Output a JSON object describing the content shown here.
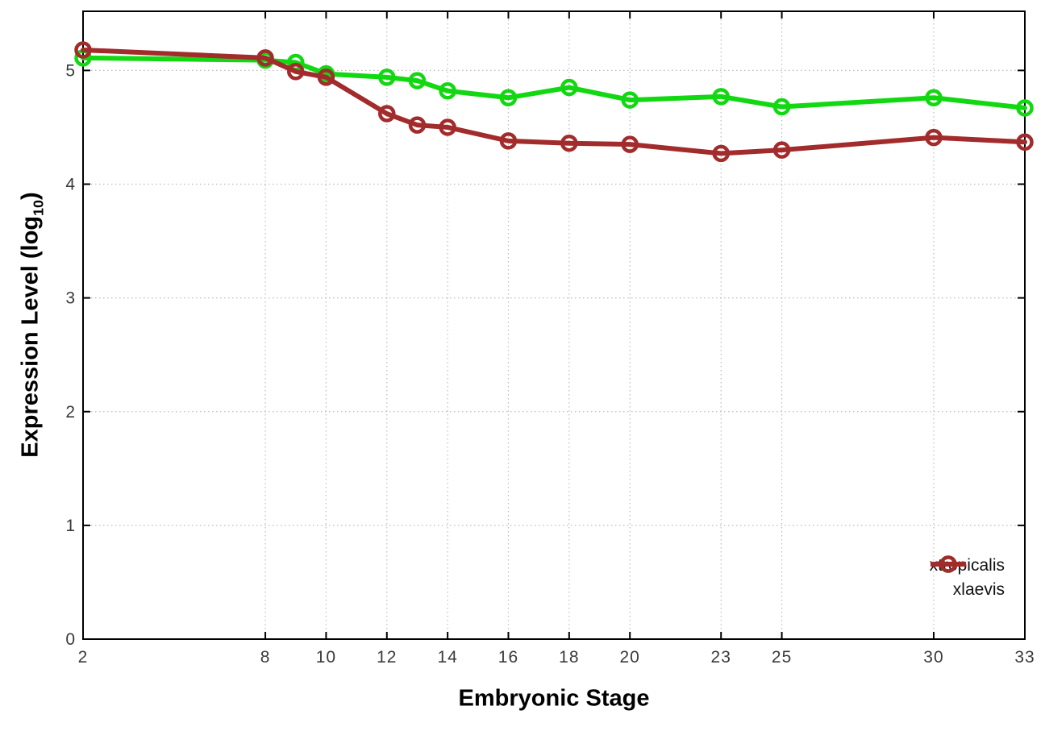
{
  "chart_data": {
    "type": "line",
    "title": "",
    "xlabel": "Embryonic Stage",
    "ylabel": "Expression Level (log10)",
    "ylabel_parts": {
      "main": "Expression Level (log",
      "sub": "10",
      "end": ")"
    },
    "x": [
      2,
      8,
      9,
      10,
      12,
      13,
      14,
      16,
      18,
      20,
      23,
      25,
      30,
      33
    ],
    "xticks": [
      "2",
      "8",
      "10",
      "12",
      "14",
      "16",
      "18",
      "20",
      "23",
      "25",
      "30",
      "33"
    ],
    "xtick_values": [
      2,
      8,
      10,
      12,
      14,
      16,
      18,
      20,
      23,
      25,
      30,
      33
    ],
    "yticks": [
      "0",
      "1",
      "2",
      "3",
      "4",
      "5"
    ],
    "ytick_values": [
      0,
      1,
      2,
      3,
      4,
      5
    ],
    "xlim": [
      2,
      33
    ],
    "ylim": [
      0,
      5.52
    ],
    "grid": true,
    "legend_position": "inside-bottom-right",
    "series": [
      {
        "name": "xtropicalis",
        "color": "#12d812",
        "values": [
          5.11,
          5.09,
          5.07,
          4.97,
          4.94,
          4.91,
          4.82,
          4.76,
          4.85,
          4.74,
          4.77,
          4.68,
          4.76,
          4.67
        ]
      },
      {
        "name": "xlaevis",
        "color": "#a22c2c",
        "values": [
          5.18,
          5.11,
          4.99,
          4.94,
          4.62,
          4.52,
          4.5,
          4.38,
          4.36,
          4.35,
          4.27,
          4.3,
          4.41,
          4.37
        ]
      }
    ]
  },
  "colors": {
    "grid": "#bcbcbc",
    "border": "#000000",
    "tick_label": "#3a3a3a"
  }
}
